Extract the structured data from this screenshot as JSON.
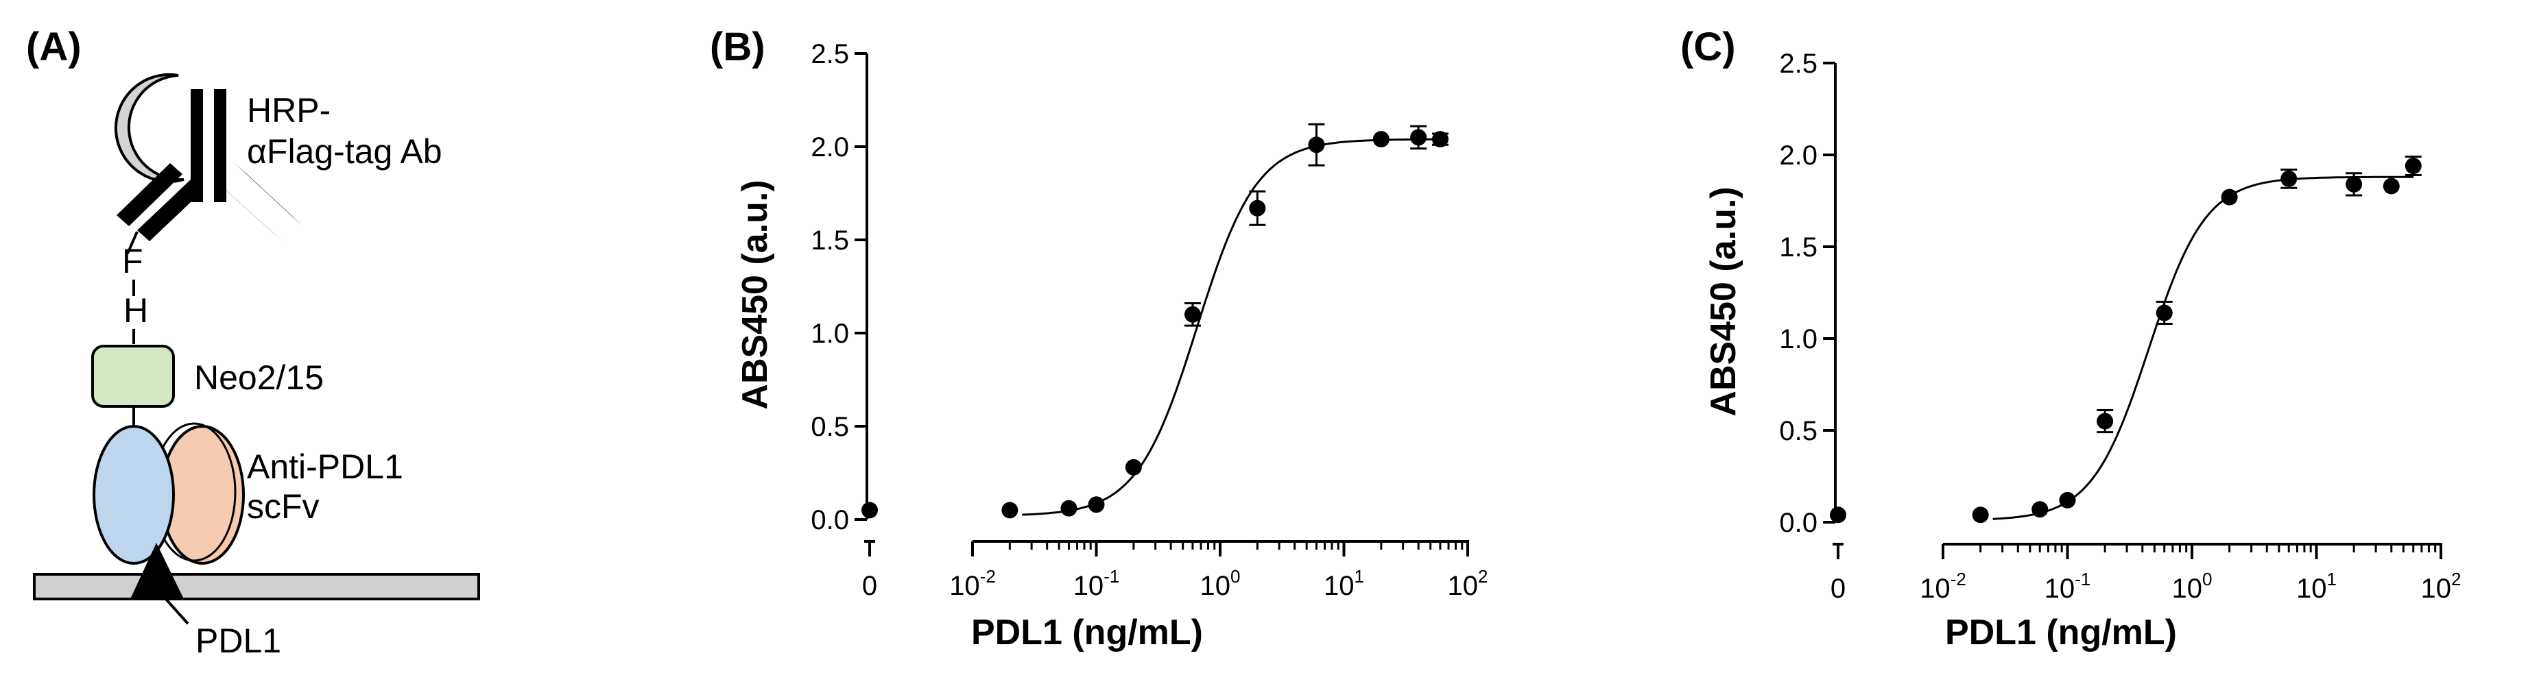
{
  "schematic": {
    "panel_label": "(A)",
    "antibody_label_1": "HRP-",
    "antibody_label_2": "αFlag-tag Ab",
    "tag_f": "F",
    "tag_h": "H",
    "neo_label": "Neo2/15",
    "scfv_label_1": "Anti-PDL1",
    "scfv_label_2": "scFv",
    "pdl1_label": "PDL1",
    "colors": {
      "hrp": "#d4d4d4",
      "neo": "#d5e8c6",
      "vh": "#bdd6ee",
      "vl": "#f6cbb0",
      "surface": "#d0d0d0"
    }
  },
  "chart_data": [
    {
      "type": "scatter",
      "panel_label": "(B)",
      "xlabel": "PDL1 (ng/mL)",
      "ylabel": "ABS450 (a.u.)",
      "xscale": "log",
      "x_ticks": [
        {
          "base": "0",
          "exp": ""
        },
        {
          "base": "10",
          "exp": "-2"
        },
        {
          "base": "10",
          "exp": "-1"
        },
        {
          "base": "10",
          "exp": "0"
        },
        {
          "base": "10",
          "exp": "1"
        },
        {
          "base": "10",
          "exp": "2"
        }
      ],
      "y_ticks": [
        "0.0",
        "0.5",
        "1.0",
        "1.5",
        "2.0",
        "2.5"
      ],
      "ylim": [
        0,
        2.5
      ],
      "points": [
        {
          "x": 0,
          "y": 0.05,
          "err": 0
        },
        {
          "x": 0.02,
          "y": 0.05,
          "err": 0
        },
        {
          "x": 0.06,
          "y": 0.06,
          "err": 0
        },
        {
          "x": 0.1,
          "y": 0.08,
          "err": 0
        },
        {
          "x": 0.2,
          "y": 0.28,
          "err": 0
        },
        {
          "x": 0.6,
          "y": 1.1,
          "err": 0.06
        },
        {
          "x": 2,
          "y": 1.67,
          "err": 0.09
        },
        {
          "x": 6,
          "y": 2.01,
          "err": 0.11
        },
        {
          "x": 20,
          "y": 2.04,
          "err": 0
        },
        {
          "x": 40,
          "y": 2.05,
          "err": 0.06
        },
        {
          "x": 60,
          "y": 2.04,
          "err": 0.03
        }
      ],
      "fit": {
        "bottom": 0.02,
        "top": 2.04,
        "ec50": 0.65,
        "hill": 1.8
      }
    },
    {
      "type": "scatter",
      "panel_label": "(C)",
      "xlabel": "PDL1 (ng/mL)",
      "ylabel": "ABS450 (a.u.)",
      "xscale": "log",
      "x_ticks": [
        {
          "base": "0",
          "exp": ""
        },
        {
          "base": "10",
          "exp": "-2"
        },
        {
          "base": "10",
          "exp": "-1"
        },
        {
          "base": "10",
          "exp": "0"
        },
        {
          "base": "10",
          "exp": "1"
        },
        {
          "base": "10",
          "exp": "2"
        }
      ],
      "y_ticks": [
        "0.0",
        "0.5",
        "1.0",
        "1.5",
        "2.0",
        "2.5"
      ],
      "ylim": [
        0,
        2.5
      ],
      "points": [
        {
          "x": 0,
          "y": 0.04,
          "err": 0
        },
        {
          "x": 0.02,
          "y": 0.04,
          "err": 0
        },
        {
          "x": 0.06,
          "y": 0.07,
          "err": 0
        },
        {
          "x": 0.1,
          "y": 0.12,
          "err": 0
        },
        {
          "x": 0.2,
          "y": 0.55,
          "err": 0.06
        },
        {
          "x": 0.6,
          "y": 1.14,
          "err": 0.06
        },
        {
          "x": 2,
          "y": 1.77,
          "err": 0
        },
        {
          "x": 6,
          "y": 1.87,
          "err": 0.05
        },
        {
          "x": 20,
          "y": 1.84,
          "err": 0.06
        },
        {
          "x": 40,
          "y": 1.83,
          "err": 0
        },
        {
          "x": 60,
          "y": 1.94,
          "err": 0.05
        }
      ],
      "fit": {
        "bottom": 0.01,
        "top": 1.88,
        "ec50": 0.45,
        "hill": 1.9
      }
    }
  ]
}
